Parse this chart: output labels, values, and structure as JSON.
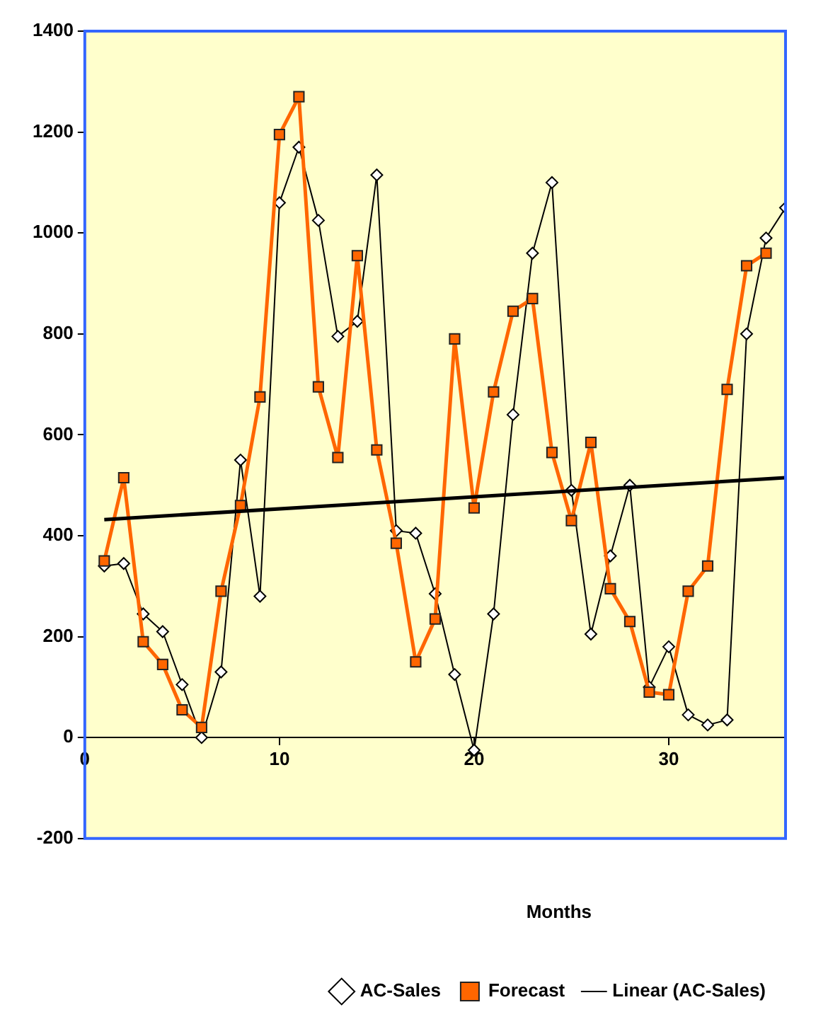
{
  "chart_data": {
    "type": "line",
    "xlabel": "Months",
    "xlim": [
      0,
      36
    ],
    "xticks": [
      0,
      10,
      20,
      30
    ],
    "ylim": [
      -200,
      1400
    ],
    "yticks": [
      -200,
      0,
      200,
      400,
      600,
      800,
      1000,
      1200,
      1400
    ],
    "grid": false,
    "legend": "bottom",
    "series": [
      {
        "name": "AC-Sales",
        "color": "#000000",
        "marker": "diamond",
        "x": [
          1,
          2,
          3,
          4,
          5,
          6,
          7,
          8,
          9,
          10,
          11,
          12,
          13,
          14,
          15,
          16,
          17,
          18,
          19,
          20,
          21,
          22,
          23,
          24,
          25,
          26,
          27,
          28,
          29,
          30,
          31,
          32,
          33,
          34,
          35,
          36
        ],
        "values": [
          340,
          345,
          245,
          210,
          105,
          0,
          130,
          550,
          280,
          1060,
          1170,
          1025,
          795,
          825,
          1115,
          410,
          405,
          285,
          125,
          -25,
          245,
          640,
          960,
          1100,
          490,
          205,
          360,
          500,
          100,
          180,
          45,
          25,
          35,
          800,
          990,
          1050
        ]
      },
      {
        "name": "Forecast",
        "color": "#ff6600",
        "marker": "square",
        "x": [
          1,
          2,
          3,
          4,
          5,
          6,
          7,
          8,
          9,
          10,
          11,
          12,
          13,
          14,
          15,
          16,
          17,
          18,
          19,
          20,
          21,
          22,
          23,
          24,
          25,
          26,
          27,
          28,
          29,
          30,
          31,
          32,
          33,
          34,
          35
        ],
        "values": [
          350,
          515,
          190,
          145,
          55,
          20,
          290,
          460,
          675,
          1195,
          1270,
          695,
          555,
          955,
          570,
          385,
          150,
          235,
          790,
          455,
          685,
          845,
          870,
          565,
          430,
          585,
          295,
          230,
          90,
          85,
          290,
          340,
          690,
          935,
          960
        ]
      },
      {
        "name": "Linear (AC-Sales)",
        "color": "#000000",
        "marker": "none",
        "x": [
          1,
          36
        ],
        "values": [
          432,
          515
        ]
      }
    ]
  }
}
